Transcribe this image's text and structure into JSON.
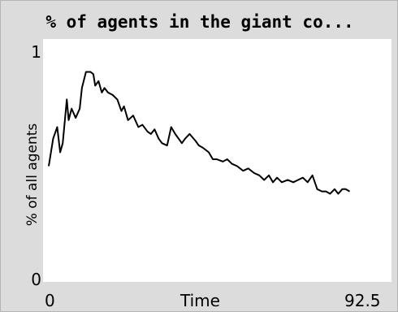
{
  "chart_data": {
    "type": "line",
    "title": "% of agents in the giant co...",
    "xlabel": "Time",
    "ylabel": "% of all agents",
    "xlim": [
      0,
      92.5
    ],
    "ylim": [
      0,
      1
    ],
    "x_tick_labels": [
      "0",
      "92.5"
    ],
    "y_tick_labels": [
      "0",
      "1"
    ],
    "grid": false,
    "series": [
      {
        "color": "#000000",
        "x": [
          0,
          1.2,
          2.3,
          3.1,
          3.8,
          4.9,
          5.4,
          6.2,
          7.3,
          8.4,
          9.0,
          10.1,
          11.3,
          12.1,
          12.6,
          13.5,
          14.4,
          15.1,
          16.1,
          17.3,
          18.6,
          19.7,
          20.4,
          21.5,
          22.9,
          24.3,
          25.4,
          26.8,
          27.7,
          28.7,
          29.8,
          30.7,
          32.1,
          33.2,
          34.3,
          35.2,
          36.1,
          37.0,
          38.2,
          39.8,
          40.7,
          41.8,
          43.4,
          44.5,
          45.6,
          47.2,
          48.4,
          49.7,
          51.1,
          52.7,
          54.1,
          55.7,
          57.1,
          58.4,
          59.7,
          60.8,
          61.9,
          63.2,
          64.8,
          66.3,
          67.6,
          68.9,
          70.2,
          71.5,
          72.8,
          74.1,
          75.2,
          76.3,
          77.5,
          78.5,
          79.6,
          80.5,
          81.6
        ],
        "y": [
          0.5,
          0.62,
          0.67,
          0.56,
          0.6,
          0.79,
          0.7,
          0.75,
          0.71,
          0.75,
          0.84,
          0.91,
          0.91,
          0.9,
          0.85,
          0.87,
          0.82,
          0.84,
          0.82,
          0.81,
          0.79,
          0.74,
          0.76,
          0.7,
          0.72,
          0.67,
          0.68,
          0.65,
          0.64,
          0.66,
          0.62,
          0.6,
          0.59,
          0.67,
          0.64,
          0.62,
          0.6,
          0.62,
          0.64,
          0.61,
          0.59,
          0.58,
          0.56,
          0.53,
          0.53,
          0.52,
          0.53,
          0.51,
          0.5,
          0.48,
          0.49,
          0.47,
          0.46,
          0.44,
          0.46,
          0.43,
          0.45,
          0.43,
          0.44,
          0.43,
          0.44,
          0.45,
          0.43,
          0.46,
          0.4,
          0.39,
          0.39,
          0.38,
          0.4,
          0.38,
          0.4,
          0.4,
          0.39
        ]
      }
    ]
  }
}
